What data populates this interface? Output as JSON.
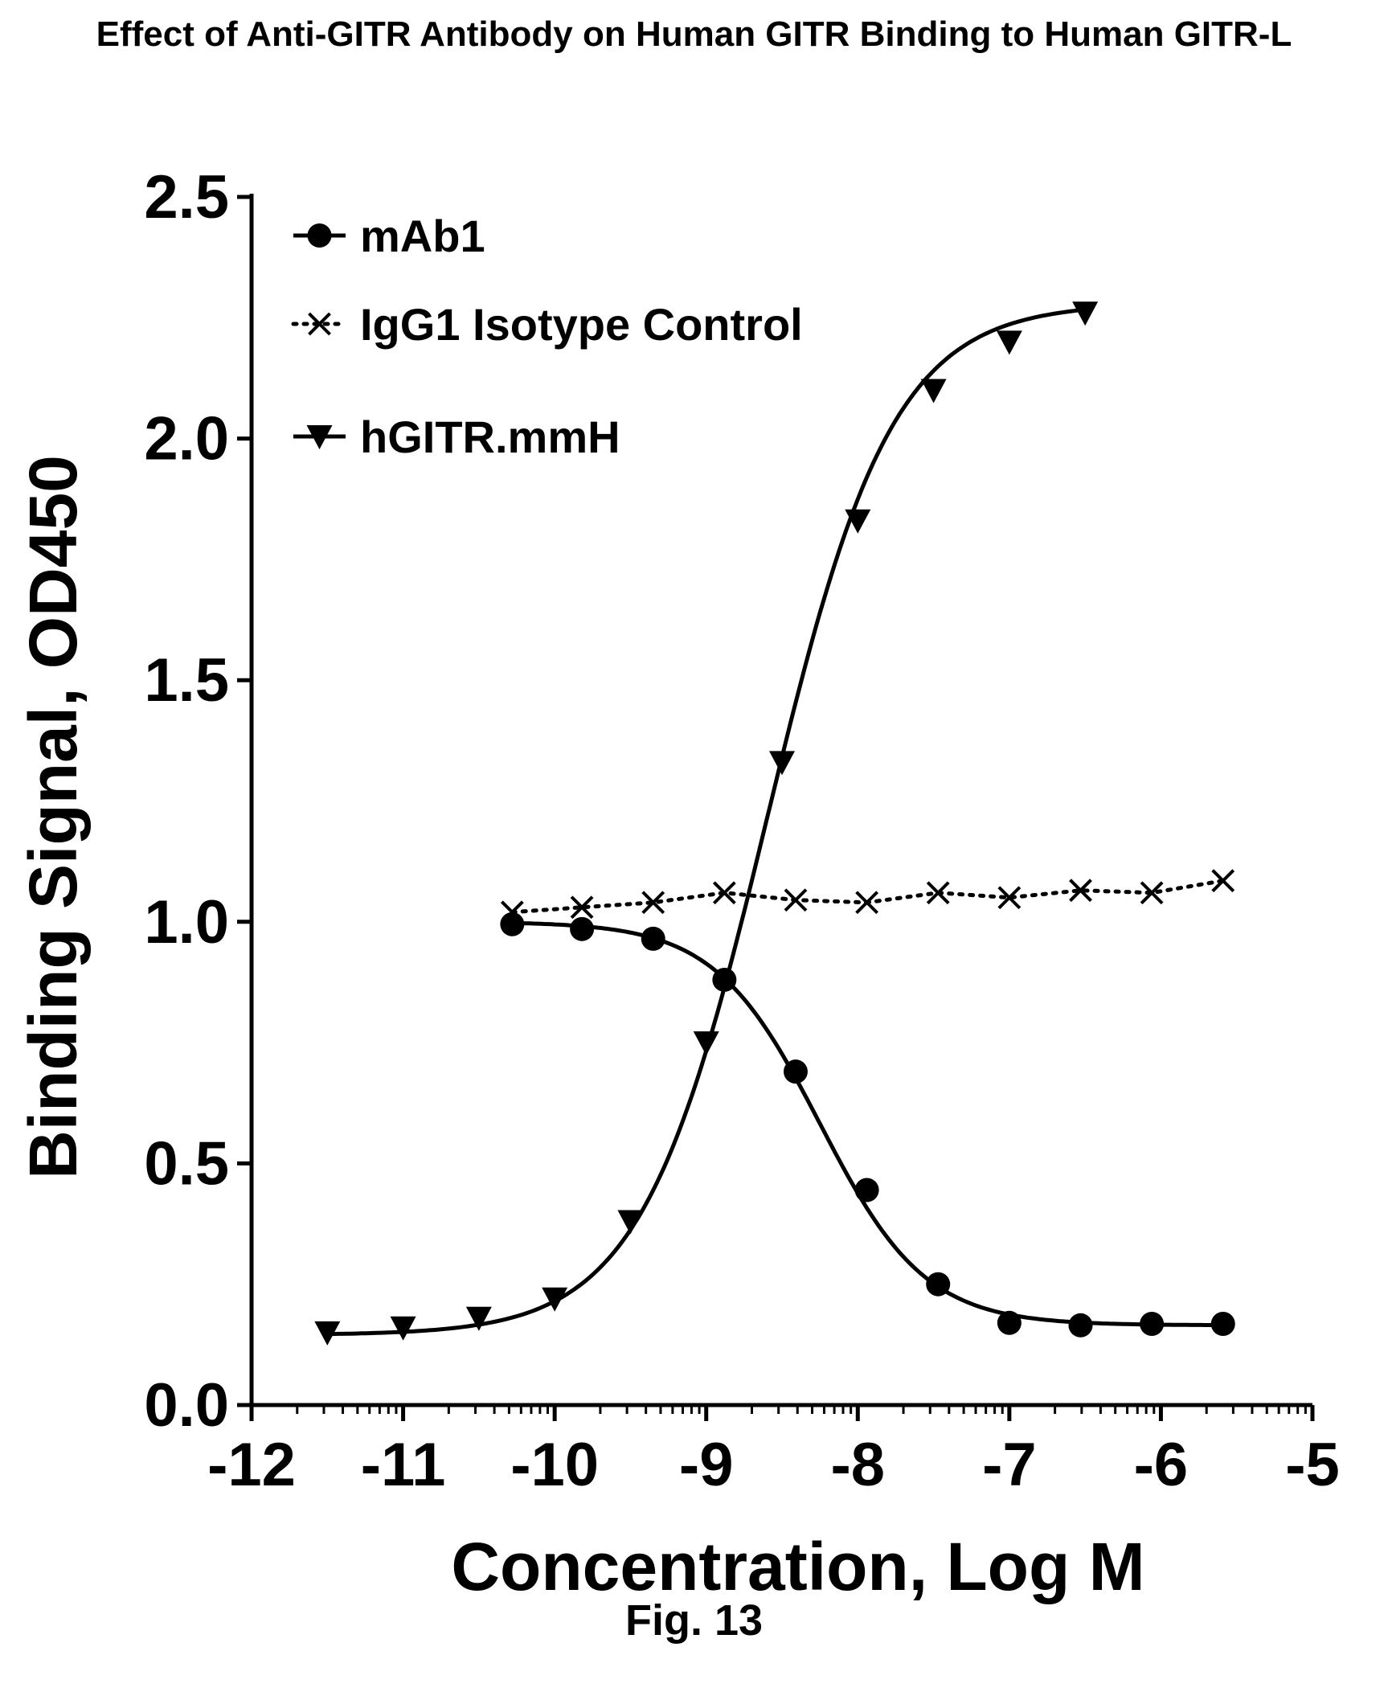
{
  "title": "Effect of Anti-GITR Antibody on Human GITR Binding to Human GITR-L",
  "caption": "Fig. 13",
  "chart_data": {
    "type": "scatter",
    "xlabel": "Concentration, Log M",
    "ylabel": "Binding Signal, OD450",
    "xlim": [
      -12,
      -5
    ],
    "ylim": [
      0,
      2.5
    ],
    "xticks": [
      "-12",
      "-11",
      "-10",
      "-9",
      "-8",
      "-7",
      "-6",
      "-5"
    ],
    "yticks": [
      "0.0",
      "0.5",
      "1.0",
      "1.5",
      "2.0",
      "2.5"
    ],
    "grid": false,
    "legend_position": "top-left",
    "series": [
      {
        "name": "mAb1",
        "marker": "circle",
        "line": "solid fit",
        "x": [
          -10.28,
          -9.82,
          -9.35,
          -8.88,
          -8.41,
          -7.94,
          -7.47,
          -7.0,
          -6.53,
          -6.06,
          -5.59
        ],
        "y": [
          0.995,
          0.985,
          0.965,
          0.88,
          0.69,
          0.445,
          0.25,
          0.17,
          0.165,
          0.168,
          0.168
        ]
      },
      {
        "name": "IgG1 Isotype Control",
        "marker": "x",
        "line": "dotted",
        "x": [
          -10.28,
          -9.82,
          -9.35,
          -8.88,
          -8.41,
          -7.94,
          -7.47,
          -7.0,
          -6.53,
          -6.06,
          -5.59
        ],
        "y": [
          1.02,
          1.03,
          1.04,
          1.06,
          1.045,
          1.04,
          1.06,
          1.05,
          1.065,
          1.06,
          1.085
        ]
      },
      {
        "name": "hGITR.mmH",
        "marker": "triangle-down",
        "line": "solid fit",
        "x": [
          -11.5,
          -11.0,
          -10.5,
          -10.0,
          -9.5,
          -9.0,
          -8.5,
          -8.0,
          -7.5,
          -7.0,
          -6.5
        ],
        "y": [
          0.15,
          0.16,
          0.18,
          0.22,
          0.38,
          0.75,
          1.33,
          1.83,
          2.1,
          2.2,
          2.26
        ]
      }
    ]
  }
}
